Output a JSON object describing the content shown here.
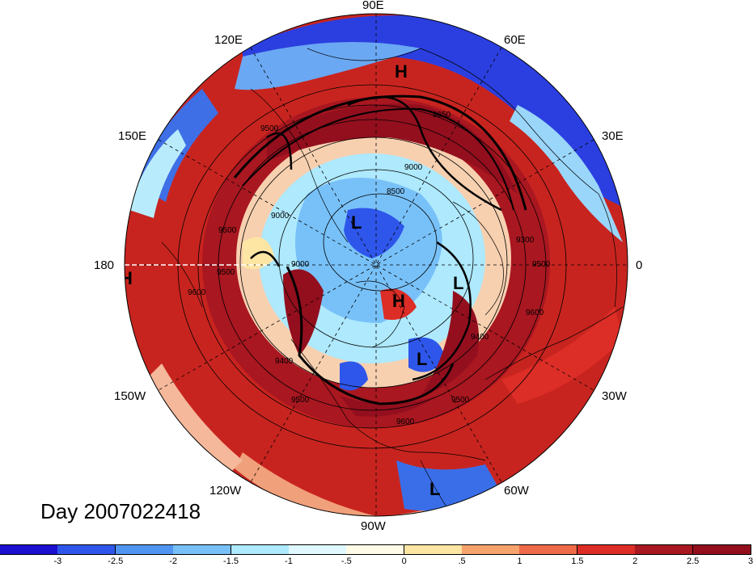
{
  "map": {
    "lon_labels": {
      "e90": "90E",
      "e120": "120E",
      "e60": "60E",
      "e150": "150E",
      "e30": "30E",
      "w180": "180",
      "e0": "0",
      "w150": "150W",
      "w30": "30W",
      "w120": "120W",
      "w60": "60W",
      "w90": "90W"
    },
    "pressure_markers": [
      {
        "id": "h-north",
        "text": "H"
      },
      {
        "id": "l-center",
        "text": "L"
      },
      {
        "id": "h-pole",
        "text": "H"
      },
      {
        "id": "l-right",
        "text": "L"
      },
      {
        "id": "l-atlantic",
        "text": "L"
      },
      {
        "id": "l-south",
        "text": "L"
      },
      {
        "id": "h-edge",
        "text": "H"
      }
    ],
    "contour_labels": [
      "9500",
      "9000",
      "8500",
      "9300",
      "9500",
      "9600",
      "9500",
      "9000",
      "9000",
      "9400",
      "9500",
      "9600",
      "9400",
      "9500",
      "9600",
      "9500",
      "9650"
    ]
  },
  "day_label": "Day 2007022418",
  "colorbar": {
    "colors": [
      "#1c0fd0",
      "#2e56ea",
      "#4f95f1",
      "#78c1f8",
      "#aee9fd",
      "#e0f8ff",
      "#fffbe6",
      "#fde5a3",
      "#f7a46c",
      "#ef6a48",
      "#dc2d26",
      "#a91720",
      "#930f1e"
    ],
    "ticks": [
      "-3",
      "-2.5",
      "-2",
      "-1.5",
      "-1",
      "-.5",
      "0",
      ".5",
      "1",
      "1.5",
      "2",
      "2.5",
      "3"
    ]
  }
}
